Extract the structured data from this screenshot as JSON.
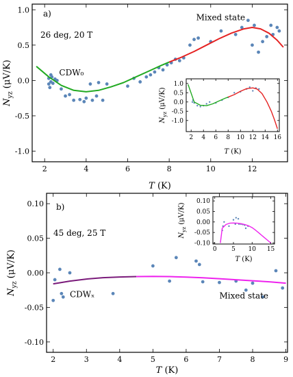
{
  "chart_data": [
    {
      "panel": "a)",
      "type": "scatter",
      "condition": "26 deg, 20 T",
      "xlabel": "T (K)",
      "ylabel": "N_yz (μV/K)",
      "xlim": [
        1.4,
        13.7
      ],
      "ylim": [
        -1.15,
        1.08
      ],
      "xticks": [
        2,
        4,
        6,
        8,
        10,
        12
      ],
      "yticks": [
        -1.0,
        -0.5,
        0.0,
        0.5,
        1.0
      ],
      "annotations": [
        {
          "text": "CDW₀",
          "x": 2.7,
          "y": 0.07
        },
        {
          "text": "Mixed state",
          "x": 9.3,
          "y": 0.85
        }
      ],
      "points": {
        "color": "#5b86b8",
        "x": [
          2.2,
          2.2,
          2.25,
          2.3,
          2.3,
          2.35,
          2.4,
          2.5,
          2.6,
          2.8,
          3.0,
          3.2,
          3.4,
          3.7,
          3.9,
          4.0,
          4.2,
          4.3,
          4.5,
          4.6,
          4.8,
          5.0,
          6.0,
          6.3,
          6.6,
          6.9,
          7.1,
          7.3,
          7.5,
          7.7,
          7.9,
          8.1,
          8.3,
          8.5,
          8.7,
          9.0,
          9.2,
          9.4,
          10.0,
          10.5,
          11.2,
          11.5,
          11.8,
          12.0,
          12.1,
          12.3,
          12.5,
          12.7,
          12.9,
          13.0,
          13.2,
          13.3
        ],
        "y": [
          -0.05,
          0.03,
          -0.1,
          0.08,
          -0.02,
          0.05,
          -0.04,
          0.02,
          0.0,
          -0.12,
          -0.22,
          -0.2,
          -0.28,
          -0.27,
          -0.3,
          -0.25,
          -0.05,
          -0.28,
          -0.22,
          -0.03,
          -0.28,
          -0.05,
          -0.08,
          0.03,
          -0.02,
          0.05,
          0.08,
          0.12,
          0.18,
          0.15,
          0.22,
          0.25,
          0.3,
          0.28,
          0.32,
          0.5,
          0.58,
          0.6,
          0.55,
          0.7,
          0.65,
          0.75,
          0.85,
          0.5,
          0.78,
          0.4,
          0.55,
          0.62,
          0.78,
          0.65,
          0.75,
          0.7
        ]
      },
      "fits": [
        {
          "name": "CDW₀",
          "color": "#22aa22",
          "x": [
            1.6,
            2.2,
            2.8,
            3.4,
            4.0,
            4.6,
            5.2,
            5.8,
            6.4,
            7.0,
            7.6,
            8.0
          ],
          "y": [
            0.2,
            0.05,
            -0.07,
            -0.14,
            -0.16,
            -0.14,
            -0.09,
            -0.03,
            0.05,
            0.13,
            0.21,
            0.26
          ]
        },
        {
          "name": "Mixed state",
          "color": "#e52222",
          "x": [
            8.0,
            8.6,
            9.2,
            9.8,
            10.4,
            11.0,
            11.6,
            12.0,
            12.4,
            12.8,
            13.2,
            13.5
          ],
          "y": [
            0.26,
            0.33,
            0.41,
            0.5,
            0.59,
            0.67,
            0.73,
            0.75,
            0.73,
            0.67,
            0.57,
            0.47
          ]
        }
      ],
      "inset": {
        "xlabel": "T (K)",
        "ylabel": "N_yz (μV/K)",
        "xlim": [
          1.2,
          16.3
        ],
        "ylim": [
          -1.6,
          1.25
        ],
        "xticks": [
          2,
          4,
          6,
          8,
          10,
          12,
          14,
          16
        ],
        "yticks": [
          -1.0,
          -0.5,
          0.0,
          0.5,
          1.0
        ],
        "points": {
          "x": [
            2.2,
            2.3,
            2.5,
            3.0,
            3.5,
            4.0,
            4.5,
            5.0,
            6.0,
            7.0,
            8.0,
            9.0,
            10.0,
            11.0,
            11.5,
            12.0,
            12.5,
            13.0
          ],
          "y": [
            0.0,
            0.1,
            -0.05,
            -0.2,
            -0.25,
            -0.2,
            -0.1,
            0.0,
            -0.05,
            0.1,
            0.25,
            0.5,
            0.55,
            0.7,
            0.8,
            0.6,
            0.75,
            0.7
          ]
        },
        "fits": [
          {
            "color": "#22aa22",
            "x": [
              1.5,
              2.5,
              3.5,
              4.5,
              5.5,
              6.5,
              7.5,
              8.0
            ],
            "y": [
              0.95,
              0.0,
              -0.18,
              -0.2,
              -0.1,
              0.05,
              0.2,
              0.26
            ]
          },
          {
            "color": "#e52222",
            "x": [
              8.0,
              9.0,
              10.0,
              11.0,
              12.0,
              12.7,
              13.5,
              14.3,
              15.0,
              15.5,
              16.0
            ],
            "y": [
              0.26,
              0.4,
              0.58,
              0.72,
              0.76,
              0.7,
              0.45,
              0.0,
              -0.5,
              -0.95,
              -1.45
            ]
          }
        ]
      }
    },
    {
      "panel": "b)",
      "type": "scatter",
      "condition": "45 deg, 25 T",
      "xlabel": "T (K)",
      "ylabel": "N_yz (μV/K)",
      "xlim": [
        1.8,
        9.05
      ],
      "ylim": [
        -0.115,
        0.115
      ],
      "xticks": [
        2,
        3,
        4,
        5,
        6,
        7,
        8,
        9
      ],
      "yticks": [
        -0.1,
        -0.05,
        0.0,
        0.05,
        0.1
      ],
      "annotations": [
        {
          "text": "CDWₓ",
          "x": 2.5,
          "y": -0.035
        },
        {
          "text": "Mixed state",
          "x": 7.0,
          "y": -0.037
        }
      ],
      "points": {
        "color": "#5b86b8",
        "x": [
          2.0,
          2.05,
          2.2,
          2.25,
          2.3,
          2.5,
          3.8,
          5.0,
          5.5,
          5.7,
          6.3,
          6.4,
          6.5,
          7.0,
          7.5,
          7.8,
          8.0,
          8.3,
          8.7,
          8.9
        ],
        "y": [
          -0.04,
          -0.01,
          0.005,
          -0.03,
          -0.035,
          0.0,
          -0.03,
          0.01,
          -0.012,
          0.022,
          0.017,
          0.012,
          -0.013,
          -0.014,
          -0.012,
          -0.025,
          -0.015,
          -0.035,
          0.003,
          -0.022
        ]
      },
      "fits": [
        {
          "name": "CDWₓ",
          "color": "#7a1a7a",
          "x": [
            2.0,
            2.5,
            3.0,
            3.5,
            4.0,
            4.5
          ],
          "y": [
            -0.016,
            -0.012,
            -0.009,
            -0.007,
            -0.006,
            -0.0055
          ]
        },
        {
          "name": "Mixed state",
          "color": "#ee22ee",
          "x": [
            4.5,
            5.0,
            5.5,
            6.0,
            6.5,
            7.0,
            7.5,
            8.0,
            8.5,
            9.0
          ],
          "y": [
            -0.0055,
            -0.0052,
            -0.0055,
            -0.0062,
            -0.0072,
            -0.0085,
            -0.01,
            -0.0115,
            -0.013,
            -0.015
          ]
        }
      ],
      "inset": {
        "xlabel": "T (K)",
        "ylabel": "N_yz (μV/K)",
        "xlim": [
          -0.5,
          16
        ],
        "ylim": [
          -0.105,
          0.12
        ],
        "xticks": [
          0,
          5,
          10,
          15
        ],
        "yticks": [
          -0.1,
          -0.05,
          0.0,
          0.05,
          0.1
        ],
        "points": {
          "x": [
            2.0,
            2.2,
            2.5,
            3.8,
            5.0,
            5.5,
            5.7,
            6.3,
            6.5,
            7.0,
            7.5,
            8.0,
            8.3,
            8.9
          ],
          "y": [
            -0.04,
            -0.02,
            0.0,
            -0.02,
            0.01,
            -0.01,
            0.02,
            0.015,
            -0.01,
            -0.01,
            -0.012,
            -0.015,
            -0.03,
            -0.02
          ]
        },
        "fits": [
          {
            "color": "#ee22ee",
            "x": [
              1.5,
              2.0,
              3.0,
              4.0,
              5.0,
              6.0,
              7.0,
              8.0,
              9.0,
              10.0,
              11.0,
              12.0,
              13.0,
              14.0,
              15.0
            ],
            "y": [
              -0.1,
              -0.03,
              -0.012,
              -0.006,
              -0.005,
              -0.006,
              -0.008,
              -0.012,
              -0.018,
              -0.027,
              -0.04,
              -0.055,
              -0.07,
              -0.085,
              -0.1
            ]
          }
        ]
      }
    }
  ]
}
